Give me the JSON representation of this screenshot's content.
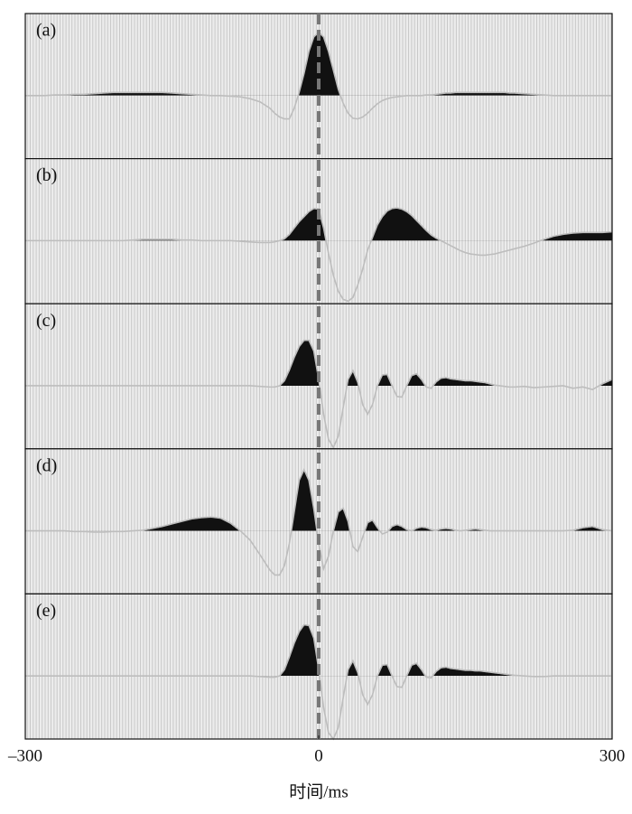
{
  "chart_data": {
    "type": "wiggle",
    "xlabel": "时间/ms",
    "xlim": [
      -300,
      300
    ],
    "xticks": [
      {
        "value": -300,
        "label": "–300"
      },
      0,
      300
    ],
    "ylim": [
      -1,
      1.3
    ],
    "vline": 0,
    "fill_positive": true,
    "color": "#111111",
    "line_color": "#bdbdbd",
    "x": [
      -300,
      -290,
      -280,
      -270,
      -260,
      -250,
      -240,
      -230,
      -220,
      -210,
      -200,
      -190,
      -180,
      -170,
      -160,
      -150,
      -140,
      -130,
      -120,
      -110,
      -100,
      -90,
      -80,
      -70,
      -60,
      -50,
      -45,
      -40,
      -35,
      -30,
      -25,
      -20,
      -15,
      -10,
      -5,
      0,
      5,
      10,
      15,
      20,
      25,
      30,
      35,
      40,
      45,
      50,
      55,
      60,
      65,
      70,
      75,
      80,
      85,
      90,
      95,
      100,
      105,
      110,
      115,
      120,
      125,
      130,
      135,
      140,
      145,
      150,
      155,
      160,
      165,
      170,
      175,
      180,
      185,
      190,
      195,
      200,
      210,
      220,
      230,
      240,
      250,
      260,
      270,
      280,
      290,
      300
    ],
    "series": [
      {
        "name": "(a)",
        "values": [
          0,
          0,
          0,
          0.01,
          0.01,
          0.02,
          0.02,
          0.03,
          0.04,
          0.05,
          0.05,
          0.05,
          0.05,
          0.05,
          0.05,
          0.04,
          0.03,
          0.02,
          0.01,
          0,
          0,
          -0.01,
          -0.02,
          -0.05,
          -0.1,
          -0.2,
          -0.28,
          -0.34,
          -0.37,
          -0.37,
          -0.2,
          0.05,
          0.35,
          0.7,
          0.93,
          1.0,
          0.93,
          0.7,
          0.4,
          0.1,
          -0.12,
          -0.28,
          -0.36,
          -0.37,
          -0.34,
          -0.28,
          -0.2,
          -0.13,
          -0.08,
          -0.05,
          -0.03,
          -0.02,
          -0.01,
          0,
          0,
          0,
          0,
          0.01,
          0.01,
          0.02,
          0.03,
          0.04,
          0.04,
          0.05,
          0.05,
          0.05,
          0.05,
          0.05,
          0.05,
          0.05,
          0.05,
          0.05,
          0.05,
          0.05,
          0.04,
          0.04,
          0.03,
          0.02,
          0.01,
          0,
          0,
          0,
          0,
          0,
          0,
          0
        ]
      },
      {
        "name": "(b)",
        "values": [
          0,
          0,
          0,
          0,
          0,
          0,
          0,
          0,
          0,
          0,
          0,
          0.01,
          0.02,
          0.02,
          0.02,
          0.02,
          0.01,
          0.01,
          0,
          0,
          0,
          0,
          -0.01,
          -0.02,
          -0.03,
          -0.03,
          -0.02,
          0.0,
          0.03,
          0.1,
          0.2,
          0.3,
          0.38,
          0.46,
          0.51,
          0.5,
          0.2,
          -0.2,
          -0.55,
          -0.8,
          -0.93,
          -0.96,
          -0.9,
          -0.7,
          -0.45,
          -0.15,
          0.05,
          0.25,
          0.38,
          0.47,
          0.51,
          0.52,
          0.5,
          0.46,
          0.4,
          0.32,
          0.24,
          0.16,
          0.09,
          0.04,
          0.0,
          -0.04,
          -0.08,
          -0.12,
          -0.16,
          -0.19,
          -0.21,
          -0.22,
          -0.23,
          -0.23,
          -0.22,
          -0.21,
          -0.19,
          -0.17,
          -0.15,
          -0.13,
          -0.09,
          -0.04,
          0.02,
          0.07,
          0.1,
          0.12,
          0.13,
          0.13,
          0.13,
          0.14
        ]
      },
      {
        "name": "(c)",
        "values": [
          0,
          0,
          0,
          0,
          0,
          0,
          0,
          0,
          0,
          0,
          0,
          0,
          0,
          0,
          0,
          0,
          0,
          0,
          0,
          0,
          0,
          0,
          0,
          0,
          -0.01,
          -0.02,
          -0.02,
          0.0,
          0.08,
          0.25,
          0.45,
          0.62,
          0.72,
          0.72,
          0.55,
          0.1,
          -0.45,
          -0.85,
          -0.98,
          -0.8,
          -0.35,
          0.1,
          0.24,
          0.05,
          -0.3,
          -0.45,
          -0.3,
          0.0,
          0.17,
          0.18,
          0.0,
          -0.17,
          -0.18,
          0.0,
          0.16,
          0.19,
          0.1,
          -0.02,
          -0.04,
          0.06,
          0.12,
          0.13,
          0.11,
          0.1,
          0.09,
          0.08,
          0.08,
          0.07,
          0.06,
          0.05,
          0.03,
          0.01,
          0.0,
          -0.01,
          -0.02,
          -0.02,
          -0.01,
          -0.03,
          -0.02,
          -0.01,
          0,
          -0.04,
          -0.02,
          -0.06,
          0.03,
          0.1
        ]
      },
      {
        "name": "(d)",
        "values": [
          0,
          0,
          0,
          0,
          0,
          -0.01,
          -0.01,
          -0.02,
          -0.02,
          -0.01,
          -0.01,
          0.0,
          0.01,
          0.04,
          0.07,
          0.11,
          0.15,
          0.19,
          0.21,
          0.22,
          0.2,
          0.12,
          0.0,
          -0.15,
          -0.38,
          -0.62,
          -0.7,
          -0.7,
          -0.55,
          -0.2,
          0.3,
          0.8,
          0.97,
          0.8,
          0.35,
          -0.2,
          -0.6,
          -0.4,
          0.0,
          0.3,
          0.36,
          0.15,
          -0.25,
          -0.33,
          -0.1,
          0.13,
          0.17,
          0.05,
          -0.05,
          -0.02,
          0.07,
          0.1,
          0.07,
          0.02,
          0.0,
          0.04,
          0.06,
          0.05,
          0.02,
          0.01,
          0.03,
          0.04,
          0.03,
          0.01,
          0.0,
          0.01,
          0.02,
          0.03,
          0.02,
          0.01,
          0.0,
          0,
          0,
          0,
          0,
          0,
          0,
          0,
          0,
          0,
          0,
          0.01,
          0.05,
          0.07,
          0.02,
          0
        ]
      },
      {
        "name": "(e)",
        "values": [
          0,
          0,
          0,
          0,
          0,
          0,
          0,
          0,
          0,
          0,
          0,
          0,
          0,
          0,
          0,
          0,
          0,
          0,
          0,
          0,
          0,
          0,
          0,
          0,
          -0.01,
          -0.02,
          -0.02,
          0.0,
          0.1,
          0.3,
          0.52,
          0.7,
          0.81,
          0.8,
          0.6,
          0.1,
          -0.5,
          -0.9,
          -1.0,
          -0.82,
          -0.35,
          0.1,
          0.24,
          0.05,
          -0.3,
          -0.45,
          -0.3,
          0.0,
          0.17,
          0.18,
          0.0,
          -0.17,
          -0.18,
          0.0,
          0.17,
          0.2,
          0.1,
          -0.02,
          -0.03,
          0.07,
          0.13,
          0.14,
          0.12,
          0.11,
          0.1,
          0.09,
          0.09,
          0.08,
          0.08,
          0.07,
          0.06,
          0.05,
          0.04,
          0.03,
          0.02,
          0.01,
          0,
          -0.01,
          -0.01,
          0,
          0,
          0,
          0,
          0,
          0,
          0
        ]
      }
    ]
  }
}
